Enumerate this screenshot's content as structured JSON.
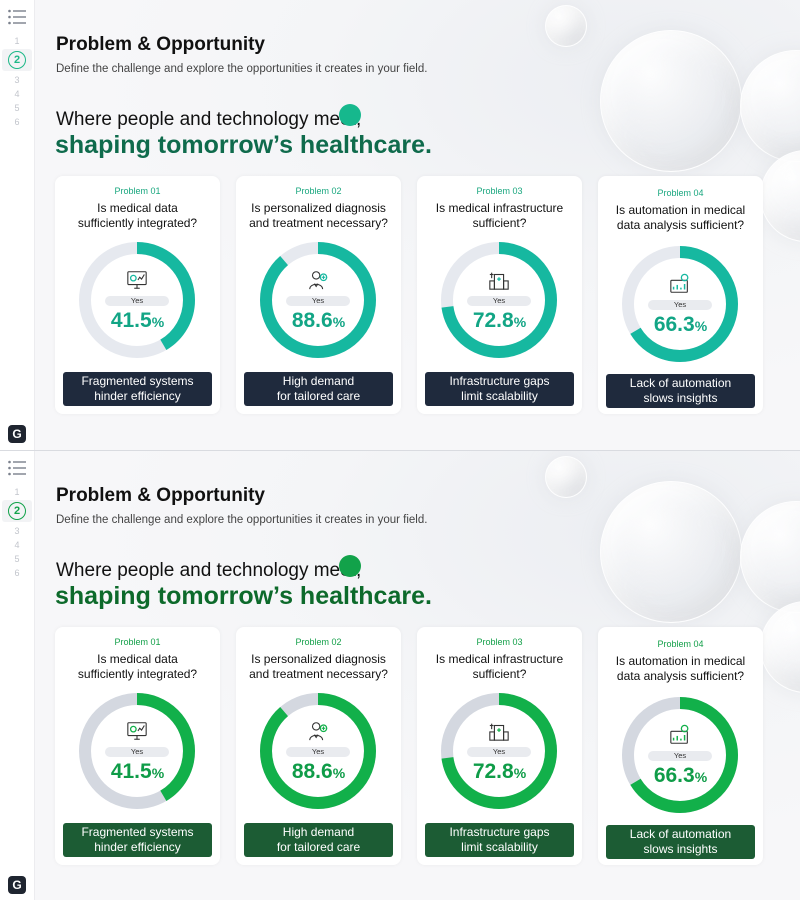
{
  "pages": [
    "1",
    "2",
    "3",
    "4",
    "5",
    "6"
  ],
  "current_page": "2",
  "logo": "G",
  "header": {
    "title": "Problem & Opportunity",
    "subtitle": "Define the challenge and explore the opportunities it creates in your field.",
    "headline_line1": "Where people and technology meet,",
    "headline_line2": "shaping tomorrow’s healthcare."
  },
  "cards": [
    {
      "label": "Problem 01",
      "question": "Is medical data\nsufficiently integrated?",
      "icon": "monitor-chart-icon",
      "yes_label": "Yes",
      "value": "41.5",
      "unit": "%",
      "percent": 41.5,
      "problem": "Fragmented systems\nhinder efficiency"
    },
    {
      "label": "Problem 02",
      "question": "Is personalized diagnosis\nand treatment necessary?",
      "icon": "doctor-icon",
      "yes_label": "Yes",
      "value": "88.6",
      "unit": "%",
      "percent": 88.6,
      "problem": "High demand\nfor tailored care"
    },
    {
      "label": "Problem 03",
      "question": "Is medical infrastructure\nsufficient?",
      "icon": "hospital-icon",
      "yes_label": "Yes",
      "value": "72.8",
      "unit": "%",
      "percent": 72.8,
      "problem": "Infrastructure gaps\nlimit scalability"
    },
    {
      "label": "Problem 04",
      "question": "Is automation in medical\ndata analysis sufficient?",
      "icon": "automation-chart-icon",
      "yes_label": "Yes",
      "value": "66.3",
      "unit": "%",
      "percent": 66.3,
      "problem": "Lack of automation\nslows insights"
    }
  ],
  "colors": {
    "teal_theme": {
      "accent": "#16b8a0",
      "title": "#0f6b4c",
      "box": "#1f2a3d",
      "track": "#e6e9ef"
    },
    "green_theme": {
      "accent": "#12b04a",
      "title": "#0d6a2b",
      "box": "#1c5c34",
      "track": "#d4d8e0"
    }
  }
}
